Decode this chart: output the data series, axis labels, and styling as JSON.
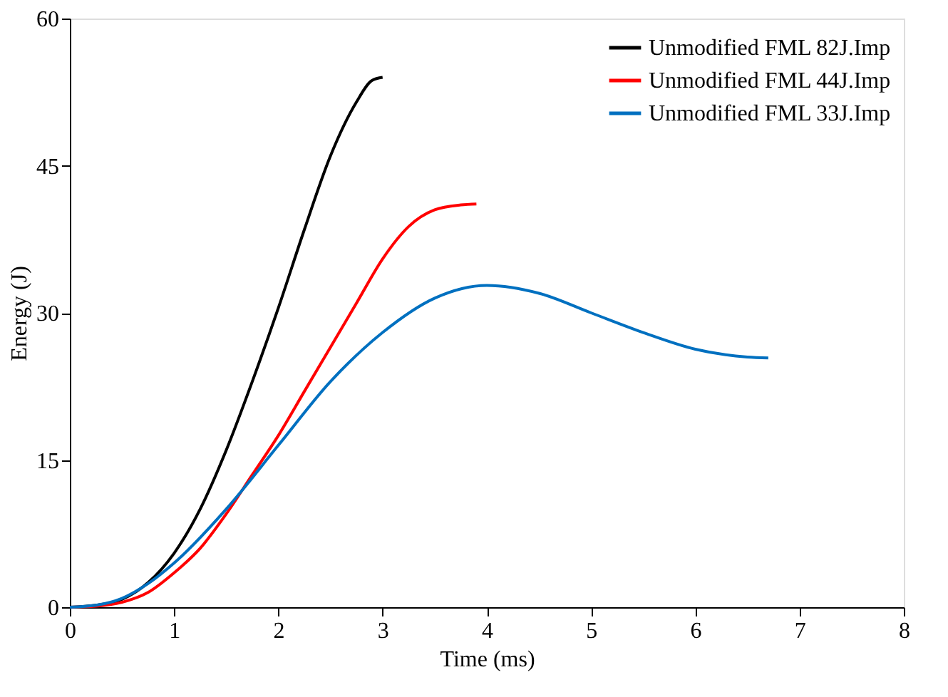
{
  "chart_data": {
    "type": "line",
    "xlabel": "Time (ms)",
    "ylabel": "Energy (J)",
    "xlim": [
      0,
      8
    ],
    "xticks": [
      0,
      1,
      2,
      3,
      4,
      5,
      6,
      7,
      8
    ],
    "ylim": [
      0,
      60
    ],
    "yticks": [
      0,
      15,
      30,
      45,
      60
    ],
    "grid": false,
    "legend": "top right",
    "marker": "none",
    "line_style": "solid",
    "series": [
      {
        "name": "Unmodified FML 82J.Imp",
        "color": "#000000",
        "x": [
          0,
          0.25,
          0.5,
          0.75,
          1,
          1.25,
          1.5,
          1.75,
          2,
          2.25,
          2.5,
          2.75,
          2.9,
          3
        ],
        "values": [
          0,
          0.2,
          0.8,
          2.5,
          5.5,
          10,
          16,
          23,
          30.5,
          38.5,
          46,
          51.5,
          53.7,
          54
        ]
      },
      {
        "name": "Unmodified FML 44J.Imp",
        "color": "#ff0000",
        "x": [
          0,
          0.25,
          0.5,
          0.75,
          1,
          1.25,
          1.5,
          1.75,
          2,
          2.25,
          2.5,
          2.75,
          3,
          3.25,
          3.5,
          3.75,
          3.9
        ],
        "values": [
          0,
          0.1,
          0.5,
          1.5,
          3.5,
          6,
          9.5,
          13.5,
          17.5,
          22,
          26.5,
          31,
          35.5,
          38.8,
          40.5,
          41,
          41.1
        ]
      },
      {
        "name": "Unmodified FML 33J.Imp",
        "color": "#0070c0",
        "x": [
          0,
          0.25,
          0.5,
          0.75,
          1,
          1.5,
          2,
          2.5,
          3,
          3.5,
          4,
          4.5,
          5,
          5.5,
          6,
          6.5,
          6.7
        ],
        "values": [
          0,
          0.2,
          0.9,
          2.4,
          4.5,
          10,
          16.5,
          23,
          28,
          31.5,
          32.8,
          32,
          30,
          28,
          26.3,
          25.5,
          25.4
        ]
      }
    ]
  }
}
